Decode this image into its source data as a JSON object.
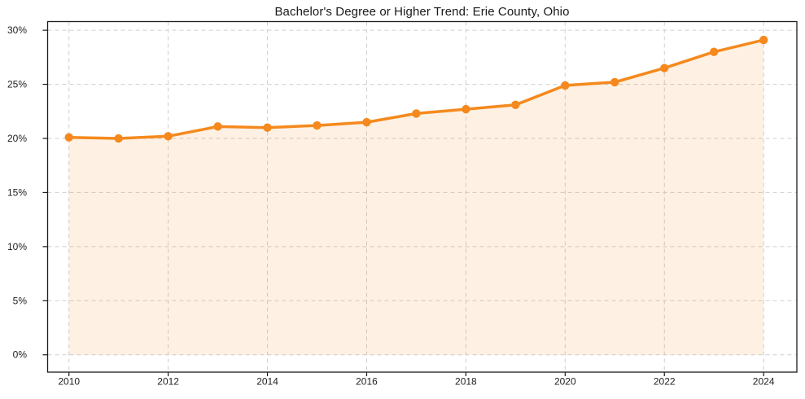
{
  "chart_data": {
    "type": "area",
    "title": "Bachelor's Degree or Higher Trend: Erie County, Ohio",
    "x": [
      2010,
      2011,
      2012,
      2013,
      2014,
      2015,
      2016,
      2017,
      2018,
      2019,
      2020,
      2021,
      2022,
      2023,
      2024
    ],
    "values": [
      20.1,
      20.0,
      20.2,
      21.1,
      21.0,
      21.2,
      21.5,
      22.3,
      22.7,
      23.1,
      24.9,
      25.2,
      26.5,
      28.0,
      29.1
    ],
    "value_unit": "%",
    "xticks": [
      2010,
      2012,
      2014,
      2016,
      2018,
      2020,
      2022,
      2024
    ],
    "xtick_labels": [
      "2010",
      "2012",
      "2014",
      "2016",
      "2018",
      "2020",
      "2022",
      "2024"
    ],
    "yticks": [
      0,
      5,
      10,
      15,
      20,
      25,
      30
    ],
    "ytick_labels": [
      "0%",
      "5%",
      "10%",
      "15%",
      "20%",
      "25%",
      "30%"
    ],
    "xlim": [
      2009.57,
      2024.67
    ],
    "ylim": [
      -1.6,
      30.8
    ],
    "grid": true,
    "grid_style": "dashed",
    "legend": false,
    "marker": "circle",
    "colors": {
      "line": "#f5891d",
      "marker": "#f5891d",
      "fill": "rgba(245,137,29,0.12)",
      "grid": "#cfcfcf",
      "axis": "#1c1c1c",
      "text": "#1f1f1f",
      "background": "#ffffff"
    }
  }
}
